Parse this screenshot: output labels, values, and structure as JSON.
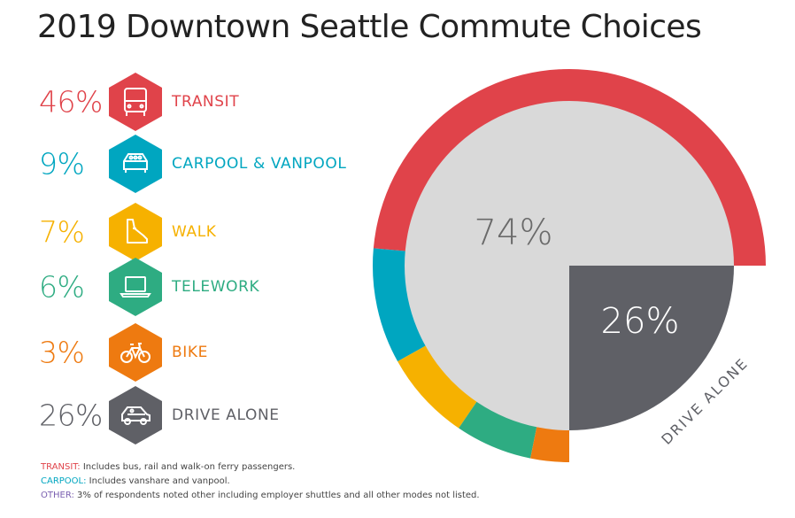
{
  "title": "2019 Downtown Seattle Commute Choices",
  "legend": [
    {
      "pct": "46%",
      "label": "TRANSIT",
      "color": "#e0434a",
      "icon": "bus-icon"
    },
    {
      "pct": "9%",
      "label": "CARPOOL & VANPOOL",
      "color": "#00a6c0",
      "icon": "carpool-van-icon"
    },
    {
      "pct": "7%",
      "label": "WALK",
      "color": "#f6b100",
      "icon": "walking-shoe-icon"
    },
    {
      "pct": "6%",
      "label": "TELEWORK",
      "color": "#2eac82",
      "icon": "laptop-icon"
    },
    {
      "pct": "3%",
      "label": "BIKE",
      "color": "#ee7a10",
      "icon": "bicycle-icon"
    },
    {
      "pct": "26%",
      "label": "DRIVE ALONE",
      "color": "#5f6066",
      "icon": "car-icon"
    }
  ],
  "chart_data": {
    "type": "pie",
    "categories": [
      "Transit",
      "Carpool & Vanpool",
      "Walk",
      "Telework",
      "Bike",
      "Drive Alone"
    ],
    "values": [
      46,
      9,
      7,
      6,
      3,
      26
    ],
    "units": "%",
    "inner_labels": {
      "other_modes": "74%",
      "drive_alone": "26%",
      "drive_alone_arc_label": "DRIVE ALONE"
    },
    "colors": {
      "Transit": "#e0434a",
      "Carpool & Vanpool": "#00a6c0",
      "Walk": "#f6b100",
      "Telework": "#2eac82",
      "Bike": "#ee7a10",
      "Drive Alone": "#5f6066",
      "inner_disc": "#d9d9d9"
    }
  },
  "notes": [
    {
      "key": "TRANSIT:",
      "text": " Includes bus, rail and walk-on ferry passengers.",
      "color": "#e0434a"
    },
    {
      "key": "CARPOOL:",
      "text": " Includes vanshare and vanpool.",
      "color": "#00a6c0"
    },
    {
      "key": "OTHER:",
      "text": " 3% of respondents noted other including employer shuttles and all other modes not listed.",
      "color": "#7a5fb0"
    }
  ]
}
